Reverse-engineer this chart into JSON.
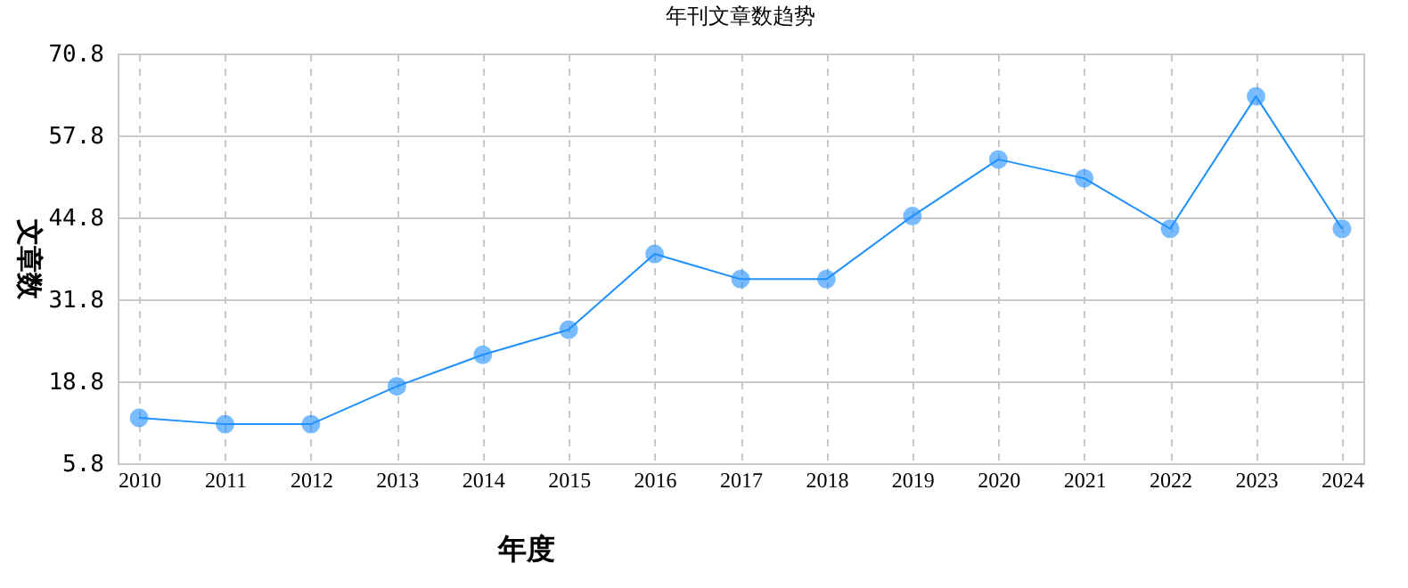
{
  "chart_data": {
    "type": "line",
    "title": "年刊文章数趋势",
    "xlabel": "年度",
    "ylabel": "文章数",
    "categories": [
      "2010",
      "2011",
      "2012",
      "2013",
      "2014",
      "2015",
      "2016",
      "2017",
      "2018",
      "2019",
      "2020",
      "2021",
      "2022",
      "2023",
      "2024"
    ],
    "series": [
      {
        "color": "#1e90ff",
        "values": [
          13,
          12,
          12,
          18,
          23,
          27,
          39,
          35,
          35,
          45,
          54,
          51,
          43,
          64,
          43
        ]
      }
    ],
    "ylim": [
      5.8,
      70.8
    ],
    "yticks": [
      5.8,
      18.8,
      31.8,
      44.8,
      57.8,
      70.8
    ],
    "grid": true,
    "marker": "circle",
    "line_style": "solid"
  }
}
